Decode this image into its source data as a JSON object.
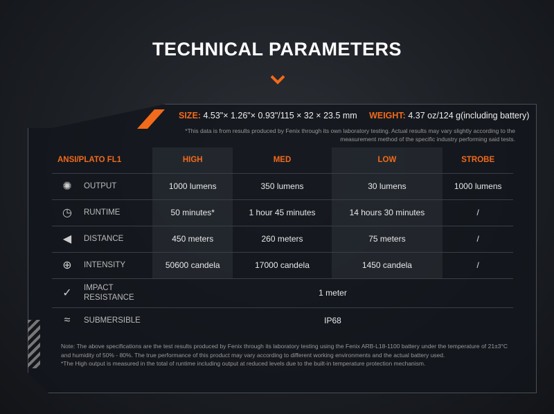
{
  "title": "TECHNICAL PARAMETERS",
  "accent": "#f26a1b",
  "specs": {
    "size_label": "SIZE:",
    "size_value": "4.53\"× 1.26\"× 0.93\"/115 × 32 × 23.5 mm",
    "weight_label": "WEIGHT:",
    "weight_value": "4.37 oz/124 g(including battery)",
    "disclaimer": "*This data is from results produced by Fenix through its own laboratory testing. Actual results may vary slightly according to the measurement method of the specific industry performing said tests."
  },
  "table": {
    "headers": [
      "ANSI/PLATO FL1",
      "HIGH",
      "MED",
      "LOW",
      "STROBE"
    ],
    "rows": [
      {
        "icon": "burst-icon",
        "label": "OUTPUT",
        "values": [
          "1000 lumens",
          "350 lumens",
          "30 lumens",
          "1000 lumens"
        ]
      },
      {
        "icon": "clock-icon",
        "label": "RUNTIME",
        "values": [
          "50 minutes*",
          "1 hour 45 minutes",
          "14 hours 30 minutes",
          "/"
        ]
      },
      {
        "icon": "beam-icon",
        "label": "DISTANCE",
        "values": [
          "450 meters",
          "260 meters",
          "75 meters",
          "/"
        ]
      },
      {
        "icon": "target-icon",
        "label": "INTENSITY",
        "values": [
          "50600 candela",
          "17000 candela",
          "1450 candela",
          "/"
        ]
      },
      {
        "icon": "impact-icon",
        "label": "IMPACT RESISTANCE",
        "value": "1 meter"
      },
      {
        "icon": "water-icon",
        "label": "SUBMERSIBLE",
        "value": "IP68"
      }
    ]
  },
  "notes": [
    "Note: The above specifications are the test results produced by Fenix through its laboratory testing using the Fenix ARB-L18-1100 battery under the temperature of 21±3°C and humidity of 50% - 80%. The true performance of this product may vary according to different working environments and the actual battery used.",
    "*The High output is measured in the total of runtime including output at reduced levels due to the built-in temperature protection mechanism."
  ]
}
